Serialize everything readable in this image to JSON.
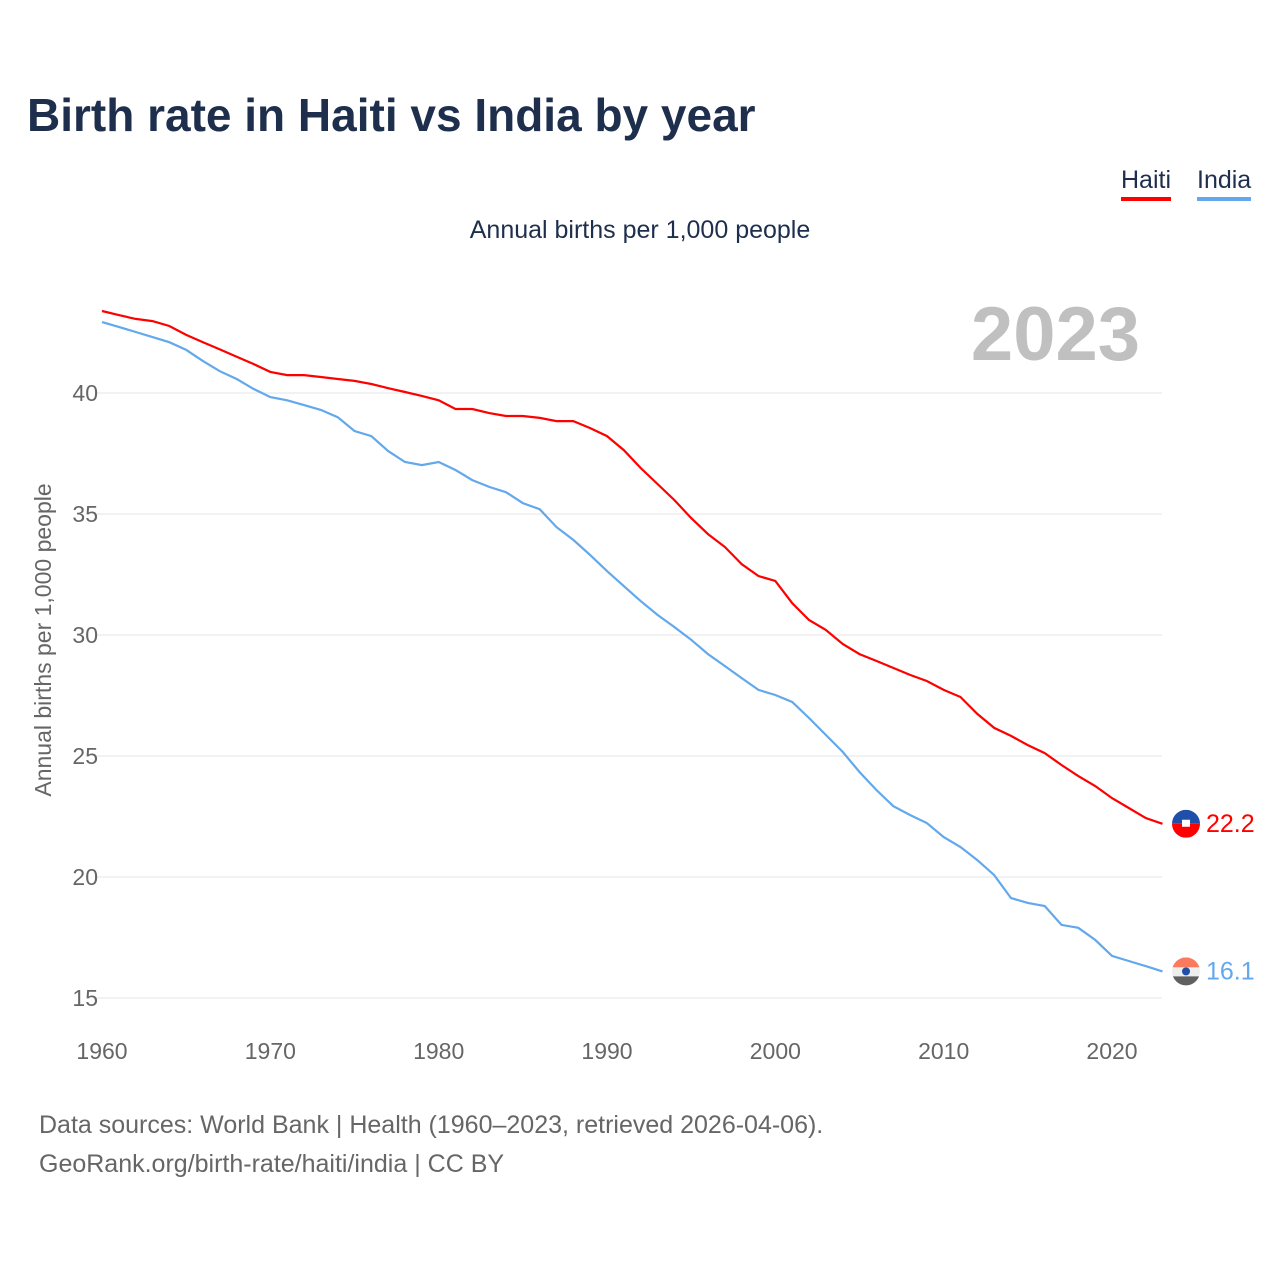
{
  "chart_data": {
    "type": "line",
    "title": "Birth rate in Haiti vs India by year",
    "subtitle": "Annual births per 1,000 people",
    "ylabel": "Annual births per 1,000 people",
    "xlabel": "",
    "year_label": "2023",
    "xlim": [
      1960,
      2023
    ],
    "ylim": [
      15,
      43.5
    ],
    "xticks": [
      1960,
      1970,
      1980,
      1990,
      2000,
      2010,
      2020
    ],
    "yticks": [
      15,
      20,
      25,
      30,
      35,
      40
    ],
    "grid": true,
    "legend_position": "top-right",
    "x_start": 1960,
    "series": [
      {
        "name": "Haiti",
        "color": "#ff0000",
        "end_label": "22.2",
        "values": [
          43.39,
          43.22,
          43.06,
          42.97,
          42.77,
          42.4,
          42.1,
          41.8,
          41.5,
          41.2,
          40.87,
          40.74,
          40.74,
          40.66,
          40.58,
          40.5,
          40.37,
          40.2,
          40.04,
          39.88,
          39.7,
          39.34,
          39.34,
          39.17,
          39.05,
          39.05,
          38.97,
          38.84,
          38.84,
          38.55,
          38.22,
          37.64,
          36.9,
          36.24,
          35.58,
          34.83,
          34.17,
          33.64,
          32.93,
          32.44,
          32.23,
          31.32,
          30.62,
          30.21,
          29.63,
          29.21,
          28.93,
          28.64,
          28.35,
          28.1,
          27.73,
          27.44,
          26.74,
          26.16,
          25.83,
          25.45,
          25.12,
          24.63,
          24.17,
          23.76,
          23.26,
          22.85,
          22.44,
          22.2
        ]
      },
      {
        "name": "India",
        "color": "#62a8ec",
        "end_label": "16.1",
        "values": [
          42.93,
          42.73,
          42.52,
          42.31,
          42.1,
          41.78,
          41.32,
          40.9,
          40.58,
          40.17,
          39.83,
          39.7,
          39.5,
          39.3,
          39.0,
          38.43,
          38.22,
          37.6,
          37.15,
          37.02,
          37.15,
          36.82,
          36.4,
          36.12,
          35.9,
          35.45,
          35.2,
          34.46,
          33.93,
          33.3,
          32.64,
          32.02,
          31.4,
          30.83,
          30.33,
          29.8,
          29.21,
          28.72,
          28.22,
          27.73,
          27.52,
          27.23,
          26.57,
          25.87,
          25.17,
          24.34,
          23.6,
          22.93,
          22.56,
          22.23,
          21.65,
          21.24,
          20.7,
          20.08,
          19.13,
          18.93,
          18.8,
          18.02,
          17.9,
          17.4,
          16.74,
          16.53,
          16.32,
          16.1
        ]
      }
    ]
  },
  "source": {
    "line1": "Data sources: World Bank | Health (1960–2023, retrieved 2026-04-06).",
    "line2": "GeoRank.org/birth-rate/haiti/india | CC BY"
  }
}
